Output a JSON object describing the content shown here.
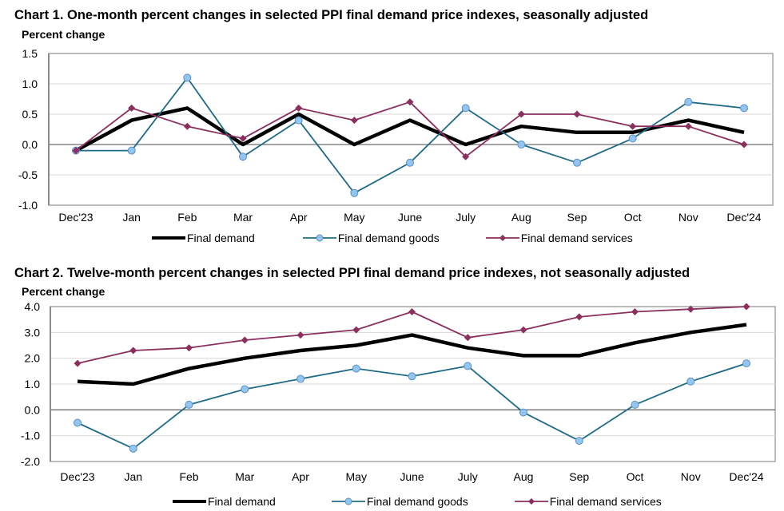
{
  "chart_data": [
    {
      "type": "line",
      "title": "Chart 1. One-month percent changes in selected PPI final demand price indexes, seasonally adjusted",
      "ylabel": "Percent change",
      "xlabel": "",
      "categories": [
        "Dec'23",
        "Jan",
        "Feb",
        "Mar",
        "Apr",
        "May",
        "June",
        "July",
        "Aug",
        "Sep",
        "Oct",
        "Nov",
        "Dec'24"
      ],
      "ylim": [
        -1.0,
        1.5
      ],
      "yticks": [
        -1.0,
        -0.5,
        0.0,
        0.5,
        1.0,
        1.5
      ],
      "ytick_labels": [
        "-1.0",
        "-0.5",
        "0.0",
        "0.5",
        "1.0",
        "1.5"
      ],
      "grid": true,
      "legend_position": "bottom",
      "series": [
        {
          "name": "Final demand",
          "color": "#000000",
          "marker": "none",
          "values": [
            -0.1,
            0.4,
            0.6,
            0.0,
            0.5,
            0.0,
            0.4,
            0.0,
            0.3,
            0.2,
            0.2,
            0.4,
            0.2
          ]
        },
        {
          "name": "Final demand goods",
          "color": "#1f6b87",
          "marker": "circle",
          "marker_fill": "#92c5f0",
          "values": [
            -0.1,
            -0.1,
            1.1,
            -0.2,
            0.4,
            -0.8,
            -0.3,
            0.6,
            0.0,
            -0.3,
            0.1,
            0.7,
            0.6
          ]
        },
        {
          "name": "Final demand services",
          "color": "#8b2f5f",
          "marker": "diamond",
          "marker_fill": "#8b2f5f",
          "values": [
            -0.1,
            0.6,
            0.3,
            0.1,
            0.6,
            0.4,
            0.7,
            -0.2,
            0.5,
            0.5,
            0.3,
            0.3,
            0.0
          ]
        }
      ]
    },
    {
      "type": "line",
      "title": "Chart 2. Twelve-month percent changes in selected PPI final demand price indexes, not seasonally adjusted",
      "ylabel": "Percent change",
      "xlabel": "",
      "categories": [
        "Dec'23",
        "Jan",
        "Feb",
        "Mar",
        "Apr",
        "May",
        "June",
        "July",
        "Aug",
        "Sep",
        "Oct",
        "Nov",
        "Dec'24"
      ],
      "ylim": [
        -2.0,
        4.0
      ],
      "yticks": [
        -2.0,
        -1.0,
        0.0,
        1.0,
        2.0,
        3.0,
        4.0
      ],
      "ytick_labels": [
        "-2.0",
        "-1.0",
        "0.0",
        "1.0",
        "2.0",
        "3.0",
        "4.0"
      ],
      "grid": true,
      "legend_position": "bottom",
      "series": [
        {
          "name": "Final demand",
          "color": "#000000",
          "marker": "none",
          "values": [
            1.1,
            1.0,
            1.6,
            2.0,
            2.3,
            2.5,
            2.9,
            2.4,
            2.1,
            2.1,
            2.6,
            3.0,
            3.3
          ]
        },
        {
          "name": "Final demand goods",
          "color": "#1f6b87",
          "marker": "circle",
          "marker_fill": "#92c5f0",
          "values": [
            -0.5,
            -1.5,
            0.2,
            0.8,
            1.2,
            1.6,
            1.3,
            1.7,
            -0.1,
            -1.2,
            0.2,
            1.1,
            1.8
          ]
        },
        {
          "name": "Final demand services",
          "color": "#8b2f5f",
          "marker": "diamond",
          "marker_fill": "#8b2f5f",
          "values": [
            1.8,
            2.3,
            2.4,
            2.7,
            2.9,
            3.1,
            3.8,
            2.8,
            3.1,
            3.6,
            3.8,
            3.9,
            4.0
          ]
        }
      ]
    }
  ]
}
